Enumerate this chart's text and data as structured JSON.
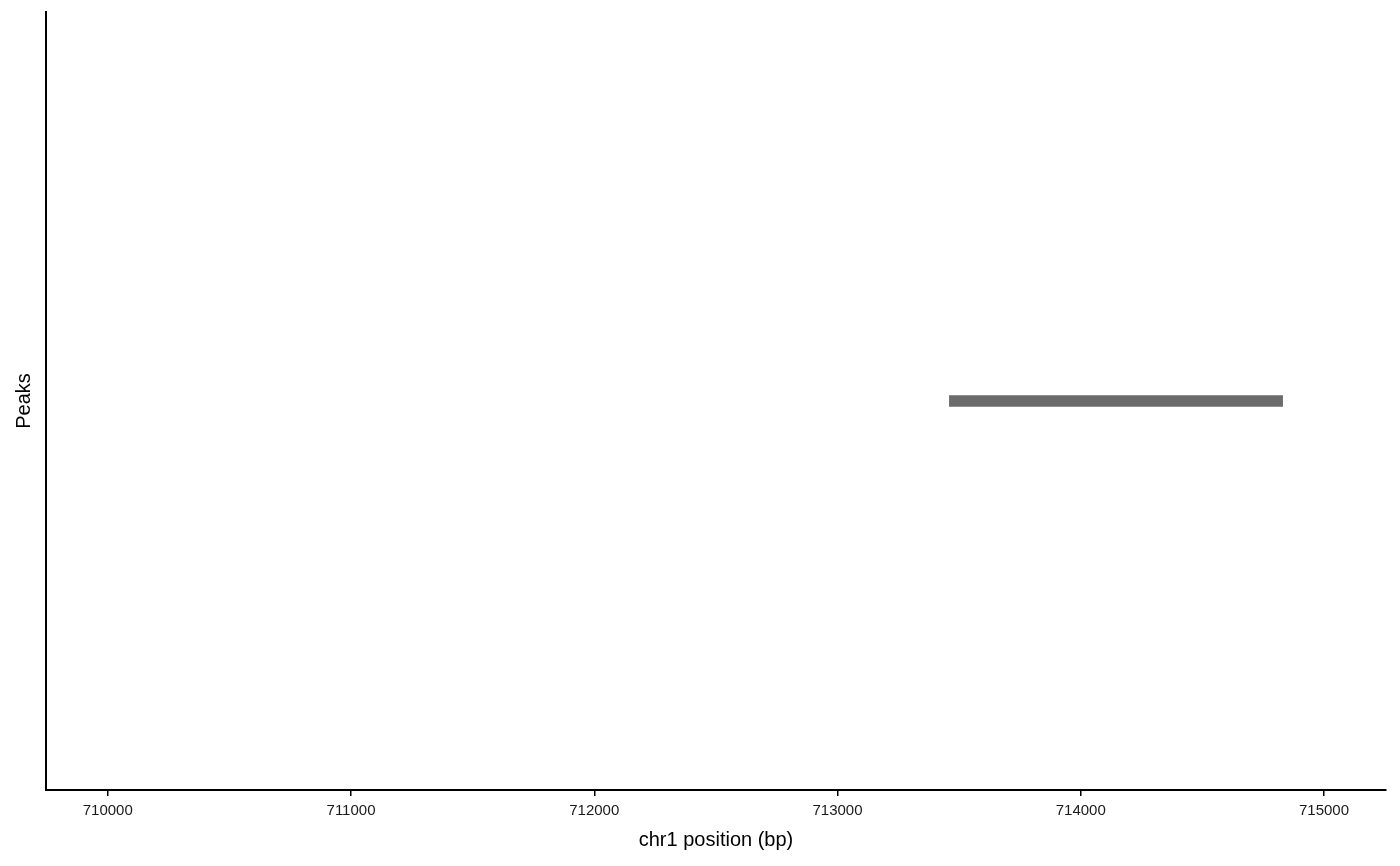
{
  "chart_data": {
    "type": "bar",
    "orientation": "horizontal",
    "xlabel": "chr1 position (bp)",
    "ylabel": "Peaks",
    "categories": [
      null
    ],
    "base": [
      713460
    ],
    "values": [
      1370
    ],
    "color": "#6b6b6b",
    "xlim": [
      709746,
      715255
    ],
    "xticks": [
      710000,
      711000,
      712000,
      713000,
      714000,
      715000
    ],
    "tick_labels": "x"
  }
}
